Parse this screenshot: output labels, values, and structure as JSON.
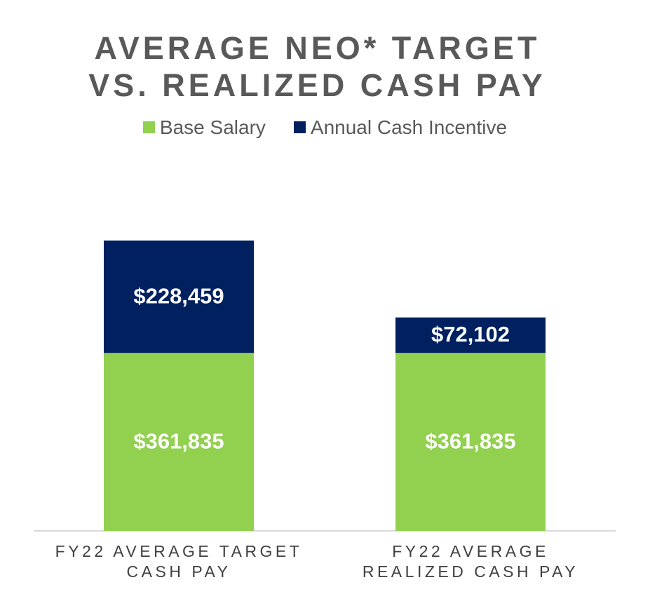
{
  "chart_data": {
    "type": "stacked-bar",
    "title": "AVERAGE NEO* TARGET\nVS. REALIZED CASH PAY",
    "categories": [
      "FY22 AVERAGE TARGET\nCASH PAY",
      "FY22 AVERAGE\nREALIZED CASH PAY"
    ],
    "series": [
      {
        "name": "Base Salary",
        "color": "#92d050",
        "values": [
          361835,
          361835
        ],
        "value_labels": [
          "$361,835",
          "$361,835"
        ]
      },
      {
        "name": "Annual Cash Incentive",
        "color": "#002060",
        "values": [
          228459,
          72102
        ],
        "value_labels": [
          "$228,459",
          "$72,102"
        ]
      }
    ]
  }
}
